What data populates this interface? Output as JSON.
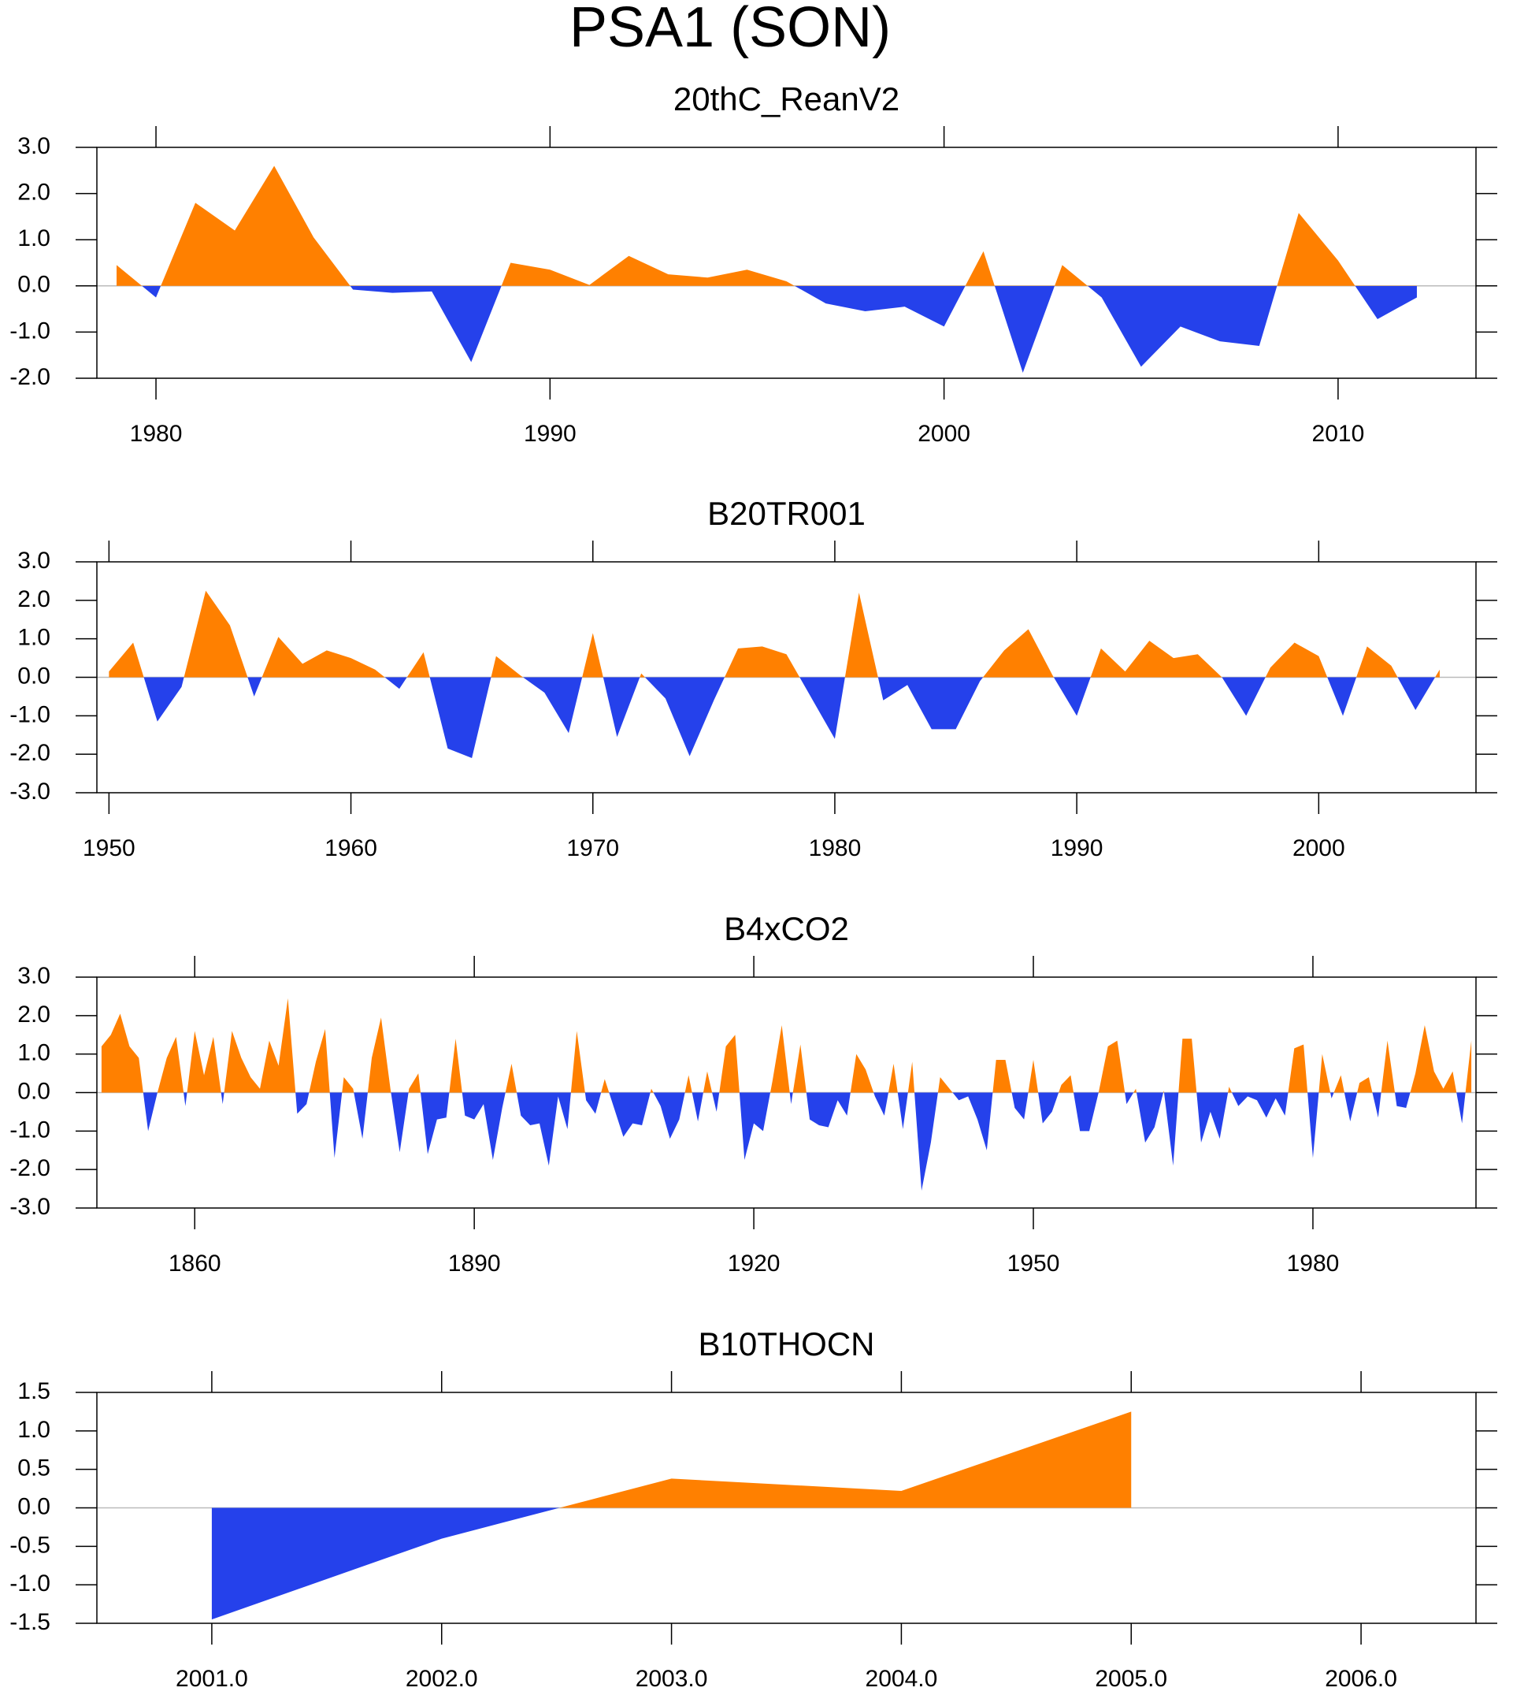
{
  "title": "PSA1 (SON)",
  "chart_data": [
    {
      "type": "area",
      "title": "20thC_ReanV2",
      "pos_color": "#ff8000",
      "neg_color": "#2541eb",
      "x": [
        1979,
        1980,
        1981,
        1982,
        1983,
        1984,
        1985,
        1986,
        1987,
        1988,
        1989,
        1990,
        1991,
        1992,
        1993,
        1994,
        1995,
        1996,
        1997,
        1998,
        1999,
        2000,
        2001,
        2002,
        2003,
        2004,
        2005,
        2006,
        2007,
        2008,
        2009,
        2010,
        2011,
        2012
      ],
      "values": [
        0.45,
        -0.25,
        1.8,
        1.2,
        2.6,
        1.05,
        -0.08,
        -0.15,
        -0.12,
        -1.65,
        0.5,
        0.35,
        0.02,
        0.65,
        0.25,
        0.18,
        0.35,
        0.1,
        -0.38,
        -0.55,
        -0.45,
        -0.88,
        0.75,
        -1.88,
        0.45,
        -0.25,
        -1.75,
        -0.88,
        -1.2,
        -1.3,
        1.58,
        0.55,
        -0.72,
        -0.25
      ],
      "xlim": [
        1978.5,
        2013.5
      ],
      "xticks": [
        1980,
        1990,
        2000,
        2010
      ],
      "ylim": [
        -2,
        3
      ],
      "yticks": [
        {
          "value": -2,
          "label": "-2.0"
        },
        {
          "value": -1,
          "label": "-1.0"
        },
        {
          "value": 0,
          "label": "0.0"
        },
        {
          "value": 1,
          "label": "1.0"
        },
        {
          "value": 2,
          "label": "2.0"
        },
        {
          "value": 3,
          "label": "3.0"
        }
      ]
    },
    {
      "type": "area",
      "title": "B20TR001",
      "pos_color": "#ff8000",
      "neg_color": "#2541eb",
      "x": [
        1950,
        1951,
        1952,
        1953,
        1954,
        1955,
        1956,
        1957,
        1958,
        1959,
        1960,
        1961,
        1962,
        1963,
        1964,
        1965,
        1966,
        1967,
        1968,
        1969,
        1970,
        1971,
        1972,
        1973,
        1974,
        1975,
        1976,
        1977,
        1978,
        1979,
        1980,
        1981,
        1982,
        1983,
        1984,
        1985,
        1986,
        1987,
        1988,
        1989,
        1990,
        1991,
        1992,
        1993,
        1994,
        1995,
        1996,
        1997,
        1998,
        1999,
        2000,
        2001,
        2002,
        2003,
        2004,
        2005
      ],
      "values": [
        0.15,
        0.9,
        -1.15,
        -0.25,
        2.25,
        1.35,
        -0.5,
        1.05,
        0.35,
        0.7,
        0.5,
        0.2,
        -0.3,
        0.65,
        -1.85,
        -2.1,
        0.55,
        0.05,
        -0.4,
        -1.45,
        1.15,
        -1.55,
        0.1,
        -0.55,
        -2.05,
        -0.6,
        0.75,
        0.8,
        0.6,
        -0.5,
        -1.6,
        2.2,
        -0.6,
        -0.2,
        -1.35,
        -1.35,
        -0.1,
        0.7,
        1.25,
        0.05,
        -1.0,
        0.75,
        0.15,
        0.95,
        0.5,
        0.6,
        0.0,
        -1.0,
        0.25,
        0.9,
        0.55,
        -1.0,
        0.8,
        0.3,
        -0.85,
        0.2
      ],
      "xlim": [
        1949.5,
        2006.5
      ],
      "xticks": [
        1950,
        1960,
        1970,
        1980,
        1990,
        2000
      ],
      "ylim": [
        -3,
        3
      ],
      "yticks": [
        {
          "value": -3,
          "label": "-3.0"
        },
        {
          "value": -2,
          "label": "-2.0"
        },
        {
          "value": -1,
          "label": "-1.0"
        },
        {
          "value": 0,
          "label": "0.0"
        },
        {
          "value": 1,
          "label": "1.0"
        },
        {
          "value": 2,
          "label": "2.0"
        },
        {
          "value": 3,
          "label": "3.0"
        }
      ]
    },
    {
      "type": "area",
      "title": "B4xCO2",
      "pos_color": "#ff8000",
      "neg_color": "#2541eb",
      "x": [
        1850,
        1851,
        1852,
        1853,
        1854,
        1855,
        1856,
        1857,
        1858,
        1859,
        1860,
        1861,
        1862,
        1863,
        1864,
        1865,
        1866,
        1867,
        1868,
        1869,
        1870,
        1871,
        1872,
        1873,
        1874,
        1875,
        1876,
        1877,
        1878,
        1879,
        1880,
        1881,
        1882,
        1883,
        1884,
        1885,
        1886,
        1887,
        1888,
        1889,
        1890,
        1891,
        1892,
        1893,
        1894,
        1895,
        1896,
        1897,
        1898,
        1899,
        1900,
        1901,
        1902,
        1903,
        1904,
        1905,
        1906,
        1907,
        1908,
        1909,
        1910,
        1911,
        1912,
        1913,
        1914,
        1915,
        1916,
        1917,
        1918,
        1919,
        1920,
        1921,
        1922,
        1923,
        1924,
        1925,
        1926,
        1927,
        1928,
        1929,
        1930,
        1931,
        1932,
        1933,
        1934,
        1935,
        1936,
        1937,
        1938,
        1939,
        1940,
        1941,
        1942,
        1943,
        1944,
        1945,
        1946,
        1947,
        1948,
        1949,
        1950,
        1951,
        1952,
        1953,
        1954,
        1955,
        1956,
        1957,
        1958,
        1959,
        1960,
        1961,
        1962,
        1963,
        1964,
        1965,
        1966,
        1967,
        1968,
        1969,
        1970,
        1971,
        1972,
        1973,
        1974,
        1975,
        1976,
        1977,
        1978,
        1979,
        1980,
        1981,
        1982,
        1983,
        1984,
        1985,
        1986,
        1987,
        1988,
        1989,
        1990,
        1991,
        1992,
        1993,
        1994,
        1995,
        1996,
        1997
      ],
      "values": [
        1.2,
        1.5,
        2.05,
        1.2,
        0.9,
        -1.0,
        0.0,
        0.9,
        1.45,
        -0.35,
        1.6,
        0.45,
        1.45,
        -0.3,
        1.6,
        0.9,
        0.4,
        0.1,
        1.35,
        0.7,
        2.45,
        -0.55,
        -0.3,
        0.8,
        1.65,
        -1.7,
        0.4,
        0.1,
        -1.2,
        0.9,
        1.95,
        0.1,
        -1.55,
        0.1,
        0.5,
        -1.6,
        -0.7,
        -0.65,
        1.4,
        -0.6,
        -0.7,
        -0.3,
        -1.75,
        -0.4,
        0.75,
        -0.6,
        -0.85,
        -0.8,
        -1.9,
        -0.1,
        -0.95,
        1.6,
        -0.2,
        -0.55,
        0.35,
        -0.4,
        -1.15,
        -0.8,
        -0.85,
        0.1,
        -0.35,
        -1.2,
        -0.7,
        0.45,
        -0.75,
        0.55,
        -0.5,
        1.2,
        1.5,
        -1.75,
        -0.8,
        -1.0,
        0.3,
        1.75,
        -0.3,
        1.25,
        -0.7,
        -0.85,
        -0.9,
        -0.2,
        -0.6,
        1.0,
        0.6,
        -0.1,
        -0.6,
        0.75,
        -0.95,
        0.8,
        -2.55,
        -1.3,
        0.4,
        0.1,
        -0.2,
        -0.1,
        -0.7,
        -1.5,
        0.85,
        0.85,
        -0.4,
        -0.7,
        0.85,
        -0.8,
        -0.5,
        0.2,
        0.45,
        -1.0,
        -1.0,
        0.0,
        1.2,
        1.35,
        -0.3,
        0.1,
        -1.3,
        -0.9,
        0.05,
        -1.9,
        1.4,
        1.4,
        -1.3,
        -0.5,
        -1.2,
        0.15,
        -0.35,
        -0.1,
        -0.2,
        -0.65,
        -0.15,
        -0.6,
        1.15,
        1.25,
        -1.7,
        1.0,
        -0.15,
        0.45,
        -0.75,
        0.25,
        0.4,
        -0.65,
        1.35,
        -0.35,
        -0.4,
        0.5,
        1.75,
        0.55,
        0.1,
        0.55,
        -0.8,
        1.35
      ],
      "xlim": [
        1849.5,
        1997.5
      ],
      "xticks": [
        1860,
        1890,
        1920,
        1950,
        1980
      ],
      "ylim": [
        -3,
        3
      ],
      "yticks": [
        {
          "value": -3,
          "label": "-3.0"
        },
        {
          "value": -2,
          "label": "-2.0"
        },
        {
          "value": -1,
          "label": "-1.0"
        },
        {
          "value": 0,
          "label": "0.0"
        },
        {
          "value": 1,
          "label": "1.0"
        },
        {
          "value": 2,
          "label": "2.0"
        },
        {
          "value": 3,
          "label": "3.0"
        }
      ]
    },
    {
      "type": "area",
      "title": "B10THOCN",
      "pos_color": "#ff8000",
      "neg_color": "#2541eb",
      "x": [
        2001,
        2002,
        2003,
        2004,
        2005
      ],
      "values": [
        -1.45,
        -0.4,
        0.38,
        0.22,
        1.25
      ],
      "xlim": [
        2000.5,
        2006.5
      ],
      "xticks": [
        {
          "value": 2001,
          "label": "2001.0"
        },
        {
          "value": 2002,
          "label": "2002.0"
        },
        {
          "value": 2003,
          "label": "2003.0"
        },
        {
          "value": 2004,
          "label": "2004.0"
        },
        {
          "value": 2005,
          "label": "2005.0"
        },
        {
          "value": 2006,
          "label": "2006.0"
        }
      ],
      "ylim": [
        -1.5,
        1.5
      ],
      "yticks": [
        {
          "value": -1.5,
          "label": "-1.5"
        },
        {
          "value": -1,
          "label": "-1.0"
        },
        {
          "value": -0.5,
          "label": "-0.5"
        },
        {
          "value": 0,
          "label": "0.0"
        },
        {
          "value": 0.5,
          "label": "0.5"
        },
        {
          "value": 1,
          "label": "1.0"
        },
        {
          "value": 1.5,
          "label": "1.5"
        }
      ]
    }
  ]
}
